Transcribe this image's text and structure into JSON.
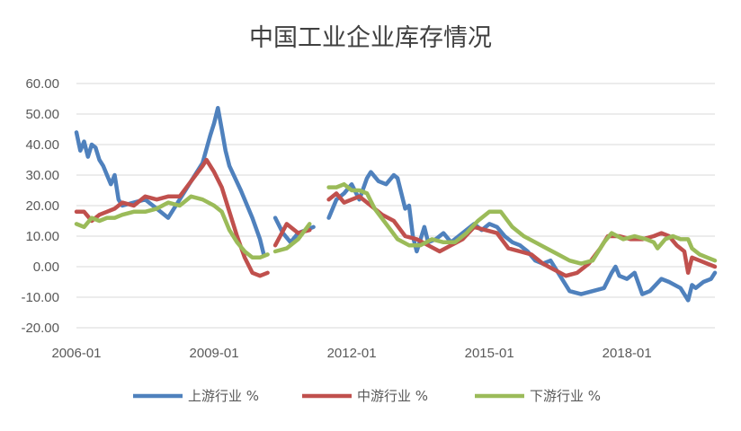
{
  "chart_data": {
    "type": "line",
    "title": "中国工业企业库存情况",
    "xlabel": "",
    "ylabel": "",
    "ylim": [
      -20,
      60
    ],
    "yticks": [
      -20,
      -10,
      0,
      10,
      20,
      30,
      40,
      50,
      60
    ],
    "ytick_labels": [
      "-20.00",
      "-10.00",
      "0.00",
      "10.00",
      "20.00",
      "30.00",
      "40.00",
      "50.00",
      "60.00"
    ],
    "x_range": [
      "2006-01",
      "2019-12"
    ],
    "xticks": [
      "2006-01",
      "2009-01",
      "2012-01",
      "2015-01",
      "2018-01"
    ],
    "grid": "horizontal",
    "legend_position": "bottom",
    "series": [
      {
        "name": "上游行业 %",
        "color": "#4f81bd",
        "points": [
          [
            "2006-01",
            44
          ],
          [
            "2006-02",
            38
          ],
          [
            "2006-03",
            41
          ],
          [
            "2006-04",
            36
          ],
          [
            "2006-05",
            40
          ],
          [
            "2006-06",
            39
          ],
          [
            "2006-07",
            35
          ],
          [
            "2006-08",
            33
          ],
          [
            "2006-09",
            30
          ],
          [
            "2006-10",
            27
          ],
          [
            "2006-11",
            30
          ],
          [
            "2006-12",
            22
          ],
          [
            "2007-01",
            20
          ],
          [
            "2007-04",
            21
          ],
          [
            "2007-07",
            22
          ],
          [
            "2007-10",
            19
          ],
          [
            "2008-01",
            16
          ],
          [
            "2008-04",
            22
          ],
          [
            "2008-07",
            28
          ],
          [
            "2008-10",
            34
          ],
          [
            "2008-12",
            43
          ],
          [
            "2009-01",
            47
          ],
          [
            "2009-02",
            52
          ],
          [
            "2009-03",
            45
          ],
          [
            "2009-04",
            38
          ],
          [
            "2009-05",
            33
          ],
          [
            "2009-08",
            25
          ],
          [
            "2009-11",
            16
          ],
          [
            "2010-01",
            9
          ],
          [
            "2010-02",
            4
          ],
          null,
          [
            "2010-05",
            16
          ],
          [
            "2010-07",
            11
          ],
          [
            "2010-09",
            8
          ],
          [
            "2010-11",
            11
          ],
          [
            "2011-01",
            12
          ],
          [
            "2011-03",
            13
          ],
          null,
          [
            "2011-07",
            16
          ],
          [
            "2011-09",
            22
          ],
          [
            "2011-11",
            24
          ],
          [
            "2012-01",
            27
          ],
          [
            "2012-03",
            22
          ],
          [
            "2012-05",
            29
          ],
          [
            "2012-06",
            31
          ],
          [
            "2012-08",
            28
          ],
          [
            "2012-10",
            27
          ],
          [
            "2012-12",
            30
          ],
          [
            "2013-01",
            29
          ],
          [
            "2013-03",
            19
          ],
          [
            "2013-04",
            20
          ],
          [
            "2013-05",
            10
          ],
          [
            "2013-06",
            5
          ],
          [
            "2013-08",
            13
          ],
          [
            "2013-09",
            8
          ],
          [
            "2013-11",
            9
          ],
          [
            "2014-01",
            11
          ],
          [
            "2014-03",
            8
          ],
          [
            "2014-05",
            10
          ],
          [
            "2014-07",
            12
          ],
          [
            "2014-09",
            14
          ],
          [
            "2014-11",
            12
          ],
          [
            "2015-01",
            14
          ],
          [
            "2015-03",
            13
          ],
          [
            "2015-05",
            10
          ],
          [
            "2015-07",
            8
          ],
          [
            "2015-09",
            7
          ],
          [
            "2015-11",
            5
          ],
          [
            "2016-01",
            2
          ],
          [
            "2016-03",
            1
          ],
          [
            "2016-05",
            2
          ],
          [
            "2016-08",
            -4
          ],
          [
            "2016-10",
            -8
          ],
          [
            "2017-01",
            -9
          ],
          [
            "2017-04",
            -8
          ],
          [
            "2017-07",
            -7
          ],
          [
            "2017-09",
            -2
          ],
          [
            "2017-10",
            0
          ],
          [
            "2017-11",
            -3
          ],
          [
            "2018-01",
            -4
          ],
          [
            "2018-03",
            -2
          ],
          [
            "2018-05",
            -9
          ],
          [
            "2018-07",
            -8
          ],
          [
            "2018-10",
            -4
          ],
          [
            "2018-12",
            -5
          ],
          [
            "2019-03",
            -7
          ],
          [
            "2019-05",
            -11
          ],
          [
            "2019-06",
            -6
          ],
          [
            "2019-07",
            -7
          ],
          [
            "2019-09",
            -5
          ],
          [
            "2019-11",
            -4
          ],
          [
            "2019-12",
            -2
          ]
        ]
      },
      {
        "name": "中游行业 %",
        "color": "#c0504d",
        "points": [
          [
            "2006-01",
            18
          ],
          [
            "2006-03",
            18
          ],
          [
            "2006-05",
            15
          ],
          [
            "2006-07",
            17
          ],
          [
            "2006-09",
            18
          ],
          [
            "2006-11",
            19
          ],
          [
            "2007-01",
            21
          ],
          [
            "2007-04",
            20
          ],
          [
            "2007-07",
            23
          ],
          [
            "2007-10",
            22
          ],
          [
            "2008-01",
            23
          ],
          [
            "2008-04",
            23
          ],
          [
            "2008-07",
            28
          ],
          [
            "2008-10",
            33
          ],
          [
            "2008-11",
            35
          ],
          [
            "2009-01",
            31
          ],
          [
            "2009-03",
            26
          ],
          [
            "2009-05",
            18
          ],
          [
            "2009-07",
            10
          ],
          [
            "2009-09",
            3
          ],
          [
            "2009-11",
            -2
          ],
          [
            "2010-01",
            -3
          ],
          [
            "2010-03",
            -2
          ],
          null,
          [
            "2010-05",
            7
          ],
          [
            "2010-08",
            14
          ],
          [
            "2010-11",
            11
          ],
          [
            "2011-02",
            12
          ],
          null,
          [
            "2011-07",
            22
          ],
          [
            "2011-09",
            24
          ],
          [
            "2011-11",
            21
          ],
          [
            "2012-01",
            22
          ],
          [
            "2012-03",
            23
          ],
          [
            "2012-06",
            20
          ],
          [
            "2012-09",
            17
          ],
          [
            "2012-12",
            15
          ],
          [
            "2013-03",
            10
          ],
          [
            "2013-06",
            9
          ],
          [
            "2013-09",
            7
          ],
          [
            "2013-12",
            5
          ],
          [
            "2014-03",
            7
          ],
          [
            "2014-06",
            9
          ],
          [
            "2014-09",
            13
          ],
          [
            "2014-12",
            12
          ],
          [
            "2015-03",
            11
          ],
          [
            "2015-06",
            6
          ],
          [
            "2015-09",
            5
          ],
          [
            "2015-12",
            4
          ],
          [
            "2016-03",
            1
          ],
          [
            "2016-06",
            -1
          ],
          [
            "2016-09",
            -3
          ],
          [
            "2016-12",
            -2
          ],
          [
            "2017-03",
            1
          ],
          [
            "2017-06",
            6
          ],
          [
            "2017-08",
            10
          ],
          [
            "2017-11",
            10
          ],
          [
            "2018-02",
            9
          ],
          [
            "2018-05",
            9
          ],
          [
            "2018-08",
            10
          ],
          [
            "2018-10",
            11
          ],
          [
            "2018-12",
            10
          ],
          [
            "2019-02",
            7
          ],
          [
            "2019-04",
            5
          ],
          [
            "2019-05",
            -2
          ],
          [
            "2019-06",
            3
          ],
          [
            "2019-08",
            2
          ],
          [
            "2019-10",
            1
          ],
          [
            "2019-12",
            0
          ]
        ]
      },
      {
        "name": "下游行业 %",
        "color": "#9bbb59",
        "points": [
          [
            "2006-01",
            14
          ],
          [
            "2006-03",
            13
          ],
          [
            "2006-05",
            16
          ],
          [
            "2006-07",
            15
          ],
          [
            "2006-09",
            16
          ],
          [
            "2006-11",
            16
          ],
          [
            "2007-01",
            17
          ],
          [
            "2007-04",
            18
          ],
          [
            "2007-07",
            18
          ],
          [
            "2007-10",
            19
          ],
          [
            "2008-01",
            21
          ],
          [
            "2008-04",
            20
          ],
          [
            "2008-07",
            23
          ],
          [
            "2008-10",
            22
          ],
          [
            "2009-01",
            20
          ],
          [
            "2009-03",
            18
          ],
          [
            "2009-05",
            12
          ],
          [
            "2009-07",
            8
          ],
          [
            "2009-09",
            5
          ],
          [
            "2009-11",
            3
          ],
          [
            "2010-01",
            3
          ],
          [
            "2010-03",
            4
          ],
          null,
          [
            "2010-05",
            5
          ],
          [
            "2010-08",
            6
          ],
          [
            "2010-11",
            9
          ],
          [
            "2011-02",
            14
          ],
          null,
          [
            "2011-07",
            26
          ],
          [
            "2011-09",
            26
          ],
          [
            "2011-11",
            27
          ],
          [
            "2012-01",
            25
          ],
          [
            "2012-03",
            25
          ],
          [
            "2012-05",
            24
          ],
          [
            "2012-07",
            19
          ],
          [
            "2012-10",
            14
          ],
          [
            "2013-01",
            9
          ],
          [
            "2013-04",
            7
          ],
          [
            "2013-07",
            7
          ],
          [
            "2013-10",
            9
          ],
          [
            "2014-01",
            8
          ],
          [
            "2014-04",
            8
          ],
          [
            "2014-07",
            11
          ],
          [
            "2014-10",
            15
          ],
          [
            "2015-01",
            18
          ],
          [
            "2015-04",
            18
          ],
          [
            "2015-07",
            13
          ],
          [
            "2015-10",
            10
          ],
          [
            "2016-01",
            8
          ],
          [
            "2016-04",
            6
          ],
          [
            "2016-07",
            4
          ],
          [
            "2016-10",
            2
          ],
          [
            "2017-01",
            1
          ],
          [
            "2017-04",
            2
          ],
          [
            "2017-07",
            8
          ],
          [
            "2017-09",
            11
          ],
          [
            "2017-12",
            9
          ],
          [
            "2018-03",
            10
          ],
          [
            "2018-06",
            9
          ],
          [
            "2018-08",
            8
          ],
          [
            "2018-09",
            6
          ],
          [
            "2018-11",
            9
          ],
          [
            "2019-01",
            10
          ],
          [
            "2019-03",
            9
          ],
          [
            "2019-05",
            9
          ],
          [
            "2019-06",
            6
          ],
          [
            "2019-08",
            4
          ],
          [
            "2019-10",
            3
          ],
          [
            "2019-12",
            2
          ]
        ]
      }
    ]
  }
}
